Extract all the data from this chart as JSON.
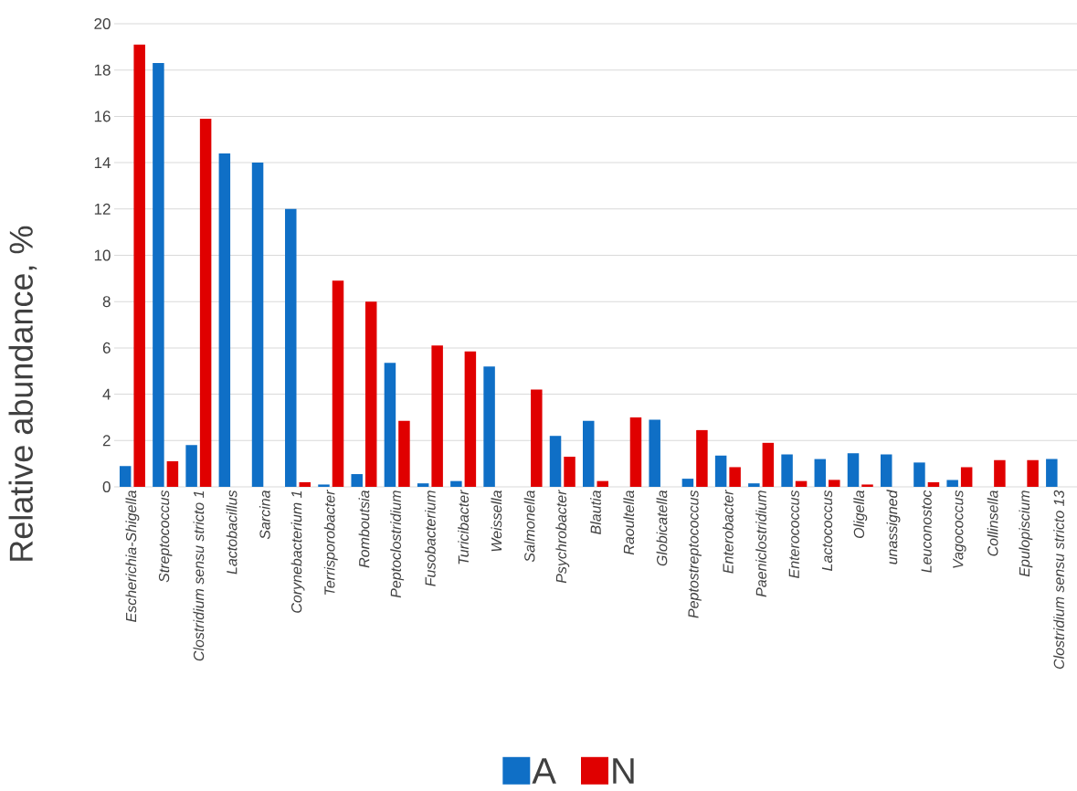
{
  "chart_data": {
    "type": "bar",
    "ylabel": "Relative abundance, %",
    "categories": [
      "Escherichia-Shigella",
      "Streptococcus",
      "Clostridium sensu stricto 1",
      "Lactobacillus",
      "Sarcina",
      "Corynebacterium 1",
      "Terrisporobacter",
      "Romboutsia",
      "Peptoclostridium",
      "Fusobacterium",
      "Turicibacter",
      "Weissella",
      "Salmonella",
      "Psychrobacter",
      "Blautia",
      "Raoultella",
      "Globicatella",
      "Peptostreptococcus",
      "Enterobacter",
      "Paeniclostridium",
      "Enterococcus",
      "Lactococcus",
      "Oligella",
      "unassigned",
      "Leuconostoc",
      "Vagococcus",
      "Collinsella",
      "Epulopiscium",
      "Clostridium sensu stricto 13"
    ],
    "series": [
      {
        "name": "A",
        "color": "#0f6fc6",
        "values": [
          0.9,
          18.3,
          1.8,
          14.4,
          14.0,
          12.0,
          0.1,
          0.55,
          5.35,
          0.15,
          0.25,
          5.2,
          0,
          2.2,
          2.85,
          0,
          2.9,
          0.35,
          1.35,
          0.15,
          1.4,
          1.2,
          1.45,
          1.4,
          1.05,
          0.3,
          0,
          0,
          1.2
        ]
      },
      {
        "name": "N",
        "color": "#e00000",
        "values": [
          19.1,
          1.1,
          15.9,
          0,
          0,
          0.2,
          8.9,
          8.0,
          2.85,
          6.1,
          5.85,
          0,
          4.2,
          1.3,
          0.25,
          3.0,
          0,
          2.45,
          0.85,
          1.9,
          0.25,
          0.3,
          0.1,
          0,
          0.2,
          0.85,
          1.15,
          1.15,
          null
        ]
      }
    ],
    "ylim": [
      0,
      20
    ],
    "yticks": [
      0,
      2,
      4,
      6,
      8,
      10,
      12,
      14,
      16,
      18,
      20
    ],
    "grid": "y",
    "legend": "bottom"
  }
}
